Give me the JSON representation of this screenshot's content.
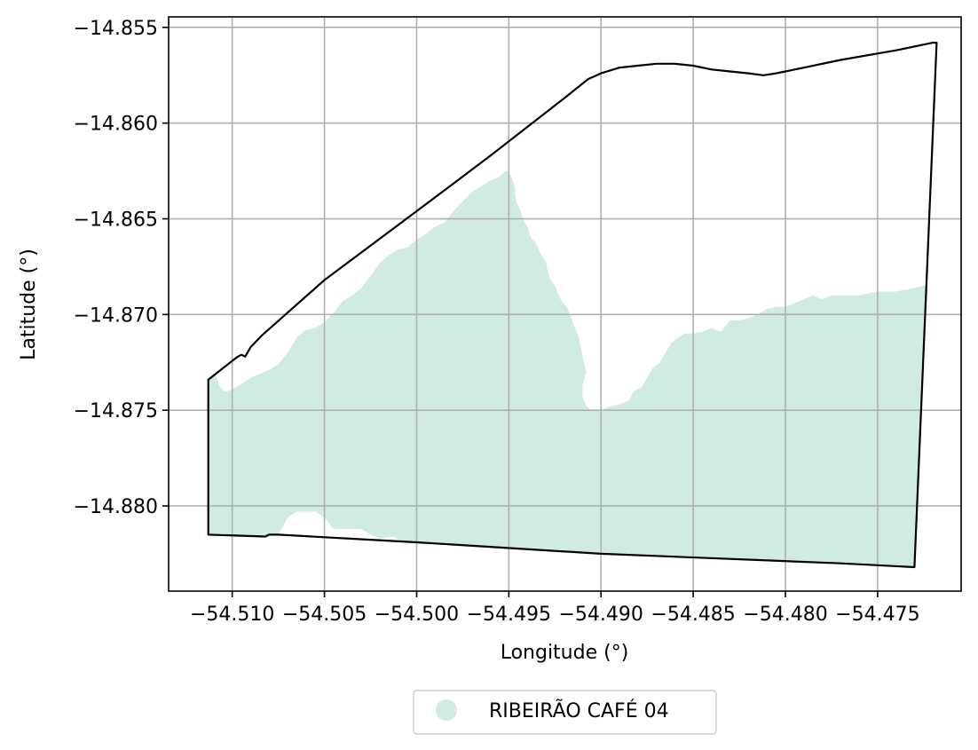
{
  "chart_data": {
    "type": "map",
    "xlabel": "Longitude (°)",
    "ylabel": "Latitude (°)",
    "xlim": [
      -54.51345,
      -54.47047
    ],
    "ylim": [
      -14.88445,
      -14.85445
    ],
    "x_ticks": [
      -54.51,
      -54.505,
      -54.5,
      -54.495,
      -54.49,
      -54.485,
      -54.48,
      -54.475
    ],
    "x_tick_labels": [
      "−54.510",
      "−54.505",
      "−54.500",
      "−54.495",
      "−54.490",
      "−54.485",
      "−54.480",
      "−54.475"
    ],
    "y_ticks": [
      -14.855,
      -14.86,
      -14.865,
      -14.87,
      -14.875,
      -14.88
    ],
    "y_tick_labels": [
      "−14.855",
      "−14.860",
      "−14.865",
      "−14.870",
      "−14.875",
      "−14.880"
    ],
    "grid": true,
    "legend": {
      "placement": "below",
      "entries": [
        {
          "label": "RIBEIRÃO CAFÉ 04",
          "color": "#d0ebdf",
          "marker": "circle"
        }
      ]
    },
    "boundary": {
      "stroke": "#000000",
      "fill": "none",
      "coordinates": [
        [
          -54.5113,
          -14.8734
        ],
        [
          -54.5097,
          -14.8722
        ],
        [
          -54.5095,
          -14.8721
        ],
        [
          -54.5093,
          -14.8722
        ],
        [
          -54.509,
          -14.8717
        ],
        [
          -54.5084,
          -14.8711
        ],
        [
          -54.505,
          -14.8682
        ],
        [
          -54.5,
          -14.8646
        ],
        [
          -54.496,
          -14.8617
        ],
        [
          -54.492,
          -14.8587
        ],
        [
          -54.4907,
          -14.8577
        ],
        [
          -54.49,
          -14.8574
        ],
        [
          -54.489,
          -14.8571
        ],
        [
          -54.488,
          -14.857
        ],
        [
          -54.487,
          -14.8569
        ],
        [
          -54.486,
          -14.8569
        ],
        [
          -54.485,
          -14.857
        ],
        [
          -54.484,
          -14.8572
        ],
        [
          -54.483,
          -14.8573
        ],
        [
          -54.482,
          -14.8574
        ],
        [
          -54.4812,
          -14.8575
        ],
        [
          -54.4805,
          -14.8574
        ],
        [
          -54.48,
          -14.8573
        ],
        [
          -54.479,
          -14.8571
        ],
        [
          -54.477,
          -14.8567
        ],
        [
          -54.474,
          -14.8562
        ],
        [
          -54.472,
          -14.8558
        ],
        [
          -54.4718,
          -14.8558
        ],
        [
          -54.473,
          -14.8832
        ],
        [
          -54.477,
          -14.883
        ],
        [
          -54.49,
          -14.8825
        ],
        [
          -54.5,
          -14.8819
        ],
        [
          -54.5075,
          -14.8815
        ],
        [
          -54.508,
          -14.8815
        ],
        [
          -54.5082,
          -14.8816
        ],
        [
          -54.5113,
          -14.8815
        ]
      ]
    },
    "area": {
      "name": "RIBEIRÃO CAFÉ 04",
      "fill": "#d0ebdf",
      "coordinates": [
        [
          -54.5113,
          -14.8734
        ],
        [
          -54.5109,
          -14.8732
        ],
        [
          -54.5107,
          -14.8737
        ],
        [
          -54.5105,
          -14.874
        ],
        [
          -54.5102,
          -14.874
        ],
        [
          -54.5098,
          -14.8738
        ],
        [
          -54.5093,
          -14.8735
        ],
        [
          -54.509,
          -14.8733
        ],
        [
          -54.5085,
          -14.8731
        ],
        [
          -54.508,
          -14.8729
        ],
        [
          -54.5075,
          -14.8726
        ],
        [
          -54.507,
          -14.872
        ],
        [
          -54.5065,
          -14.8712
        ],
        [
          -54.506,
          -14.8708
        ],
        [
          -54.5055,
          -14.8707
        ],
        [
          -54.505,
          -14.8704
        ],
        [
          -54.5045,
          -14.8699
        ],
        [
          -54.504,
          -14.8693
        ],
        [
          -54.5035,
          -14.869
        ],
        [
          -54.503,
          -14.8686
        ],
        [
          -54.5025,
          -14.868
        ],
        [
          -54.502,
          -14.8673
        ],
        [
          -54.5015,
          -14.8669
        ],
        [
          -54.501,
          -14.8666
        ],
        [
          -54.5005,
          -14.8665
        ],
        [
          -54.5,
          -14.8661
        ],
        [
          -54.4995,
          -14.8658
        ],
        [
          -54.499,
          -14.8654
        ],
        [
          -54.4985,
          -14.8652
        ],
        [
          -54.498,
          -14.8646
        ],
        [
          -54.4975,
          -14.8641
        ],
        [
          -54.497,
          -14.8636
        ],
        [
          -54.4965,
          -14.8633
        ],
        [
          -54.496,
          -14.863
        ],
        [
          -54.4955,
          -14.8628
        ],
        [
          -54.4952,
          -14.8625
        ],
        [
          -54.495,
          -14.8625
        ],
        [
          -54.4947,
          -14.8632
        ],
        [
          -54.4946,
          -14.8641
        ],
        [
          -54.4944,
          -14.8645
        ],
        [
          -54.4942,
          -14.8651
        ],
        [
          -54.494,
          -14.8654
        ],
        [
          -54.4938,
          -14.866
        ],
        [
          -54.4935,
          -14.8663
        ],
        [
          -54.4933,
          -14.8668
        ],
        [
          -54.493,
          -14.8672
        ],
        [
          -54.4928,
          -14.8681
        ],
        [
          -54.4925,
          -14.8685
        ],
        [
          -54.4922,
          -14.8692
        ],
        [
          -54.4918,
          -14.8697
        ],
        [
          -54.4915,
          -14.8705
        ],
        [
          -54.4912,
          -14.8712
        ],
        [
          -54.491,
          -14.8722
        ],
        [
          -54.4908,
          -14.873
        ],
        [
          -54.491,
          -14.8737
        ],
        [
          -54.491,
          -14.8743
        ],
        [
          -54.4908,
          -14.8748
        ],
        [
          -54.4905,
          -14.875
        ],
        [
          -54.49,
          -14.875
        ],
        [
          -54.4895,
          -14.8748
        ],
        [
          -54.489,
          -14.8747
        ],
        [
          -54.4885,
          -14.8745
        ],
        [
          -54.4882,
          -14.874
        ],
        [
          -54.4878,
          -14.8738
        ],
        [
          -54.4875,
          -14.8733
        ],
        [
          -54.4872,
          -14.8728
        ],
        [
          -54.4868,
          -14.8725
        ],
        [
          -54.4865,
          -14.872
        ],
        [
          -54.4862,
          -14.8715
        ],
        [
          -54.4858,
          -14.8712
        ],
        [
          -54.4855,
          -14.871
        ],
        [
          -54.485,
          -14.871
        ],
        [
          -54.4845,
          -14.8709
        ],
        [
          -54.484,
          -14.8707
        ],
        [
          -54.4835,
          -14.8709
        ],
        [
          -54.483,
          -14.8703
        ],
        [
          -54.4825,
          -14.8703
        ],
        [
          -54.482,
          -14.8702
        ],
        [
          -54.4815,
          -14.87
        ],
        [
          -54.481,
          -14.8697
        ],
        [
          -54.4805,
          -14.8696
        ],
        [
          -54.48,
          -14.8696
        ],
        [
          -54.4795,
          -14.8694
        ],
        [
          -54.479,
          -14.8692
        ],
        [
          -54.4785,
          -14.869
        ],
        [
          -54.478,
          -14.8692
        ],
        [
          -54.4775,
          -14.869
        ],
        [
          -54.477,
          -14.869
        ],
        [
          -54.476,
          -14.869
        ],
        [
          -54.475,
          -14.8688
        ],
        [
          -54.474,
          -14.8688
        ],
        [
          -54.473,
          -14.8686
        ],
        [
          -54.4725,
          -14.8685
        ],
        [
          -54.4723,
          -14.8685
        ],
        [
          -54.473,
          -14.8832
        ],
        [
          -54.477,
          -14.883
        ],
        [
          -54.49,
          -14.8825
        ],
        [
          -54.5,
          -14.8819
        ],
        [
          -54.501,
          -14.8818
        ],
        [
          -54.5012,
          -14.8816
        ],
        [
          -54.502,
          -14.8817
        ],
        [
          -54.5025,
          -14.8815
        ],
        [
          -54.503,
          -14.8812
        ],
        [
          -54.504,
          -14.8812
        ],
        [
          -54.5045,
          -14.8812
        ],
        [
          -54.505,
          -14.8806
        ],
        [
          -54.5055,
          -14.8803
        ],
        [
          -54.506,
          -14.8803
        ],
        [
          -54.5065,
          -14.8803
        ],
        [
          -54.507,
          -14.8806
        ],
        [
          -54.5072,
          -14.881
        ],
        [
          -54.5075,
          -14.8815
        ],
        [
          -54.508,
          -14.8815
        ],
        [
          -54.5082,
          -14.8816
        ],
        [
          -54.5113,
          -14.8815
        ]
      ]
    }
  }
}
